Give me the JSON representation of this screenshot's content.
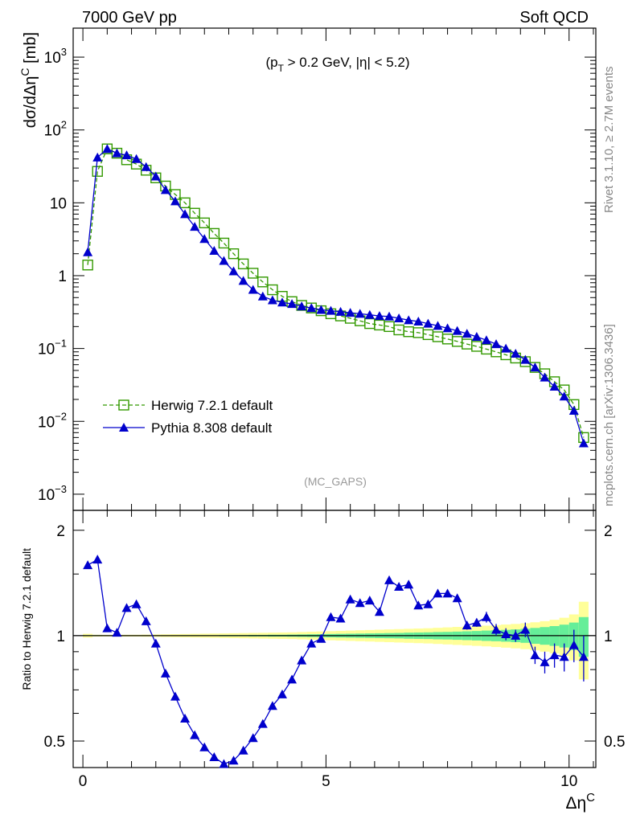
{
  "header": {
    "left": "7000 GeV pp",
    "right": "Soft QCD"
  },
  "side_labels": {
    "rivet": "Rivet 3.1.10, ≥ 2.7M events",
    "mcplots": "mcplots.cern.ch [arXiv:1306.3436]"
  },
  "analysis_tag": "(MC_GAPS)",
  "chart_data": [
    {
      "type": "line",
      "panel": "main",
      "ylabel": "dσ/dΔη^C [mb]",
      "annotation": "(p_T > 0.2 GeV, |η| < 5.2)",
      "xlim": [
        -0.2,
        10.55
      ],
      "ylim": [
        0.0006,
        2500
      ],
      "yscale": "log",
      "y_ticks": [
        "10^-3",
        "10^-2",
        "10^-1",
        "1",
        "10",
        "10^2",
        "10^3"
      ],
      "legend_position": "lower-left",
      "series": [
        {
          "name": "Herwig 7.2.1 default",
          "color": "#339900",
          "marker": "open-square",
          "linestyle": "dashed",
          "x": [
            0.1,
            0.3,
            0.5,
            0.7,
            0.9,
            1.1,
            1.3,
            1.5,
            1.7,
            1.9,
            2.1,
            2.3,
            2.5,
            2.7,
            2.9,
            3.1,
            3.3,
            3.5,
            3.7,
            3.9,
            4.1,
            4.3,
            4.5,
            4.7,
            4.9,
            5.1,
            5.3,
            5.5,
            5.7,
            5.9,
            6.1,
            6.3,
            6.5,
            6.7,
            6.9,
            7.1,
            7.3,
            7.5,
            7.7,
            7.9,
            8.1,
            8.3,
            8.5,
            8.7,
            8.9,
            9.1,
            9.3,
            9.5,
            9.7,
            9.9,
            10.1,
            10.3
          ],
          "values": [
            1.4,
            27,
            55,
            48,
            39,
            34,
            28,
            22,
            17,
            13,
            10,
            7.2,
            5.3,
            3.8,
            2.8,
            2.0,
            1.45,
            1.08,
            0.82,
            0.64,
            0.52,
            0.44,
            0.39,
            0.36,
            0.33,
            0.3,
            0.28,
            0.26,
            0.24,
            0.22,
            0.21,
            0.2,
            0.18,
            0.17,
            0.165,
            0.155,
            0.145,
            0.135,
            0.125,
            0.115,
            0.107,
            0.098,
            0.09,
            0.082,
            0.074,
            0.066,
            0.055,
            0.045,
            0.035,
            0.027,
            0.017,
            0.006
          ]
        },
        {
          "name": "Pythia 8.308 default",
          "color": "#0000cc",
          "marker": "filled-triangle",
          "linestyle": "solid",
          "x": [
            0.1,
            0.3,
            0.5,
            0.7,
            0.9,
            1.1,
            1.3,
            1.5,
            1.7,
            1.9,
            2.1,
            2.3,
            2.5,
            2.7,
            2.9,
            3.1,
            3.3,
            3.5,
            3.7,
            3.9,
            4.1,
            4.3,
            4.5,
            4.7,
            4.9,
            5.1,
            5.3,
            5.5,
            5.7,
            5.9,
            6.1,
            6.3,
            6.5,
            6.7,
            6.9,
            7.1,
            7.3,
            7.5,
            7.7,
            7.9,
            8.1,
            8.3,
            8.5,
            8.7,
            8.9,
            9.1,
            9.3,
            9.5,
            9.7,
            9.9,
            10.1,
            10.3
          ],
          "values": [
            2.1,
            42,
            55,
            48,
            45,
            40,
            31,
            23,
            15,
            10.5,
            7,
            4.7,
            3.2,
            2.2,
            1.6,
            1.15,
            0.85,
            0.64,
            0.52,
            0.46,
            0.43,
            0.41,
            0.38,
            0.36,
            0.34,
            0.33,
            0.32,
            0.31,
            0.3,
            0.29,
            0.28,
            0.275,
            0.26,
            0.245,
            0.235,
            0.22,
            0.205,
            0.19,
            0.175,
            0.16,
            0.145,
            0.13,
            0.115,
            0.1,
            0.085,
            0.07,
            0.055,
            0.04,
            0.03,
            0.022,
            0.014,
            0.005
          ]
        }
      ]
    },
    {
      "type": "line",
      "panel": "ratio",
      "xlabel": "Δη^C",
      "ylabel": "Ratio to Herwig 7.2.1 default",
      "xlim": [
        -0.2,
        10.55
      ],
      "ylim": [
        0.42,
        2.28
      ],
      "yscale": "log",
      "x_ticks": [
        0,
        5,
        10
      ],
      "y_ticks": [
        0.5,
        1,
        2
      ],
      "bands": {
        "x": [
          0.1,
          0.3,
          0.5,
          0.7,
          0.9,
          1.1,
          1.3,
          1.5,
          1.7,
          1.9,
          2.1,
          2.3,
          2.5,
          2.7,
          2.9,
          3.1,
          3.3,
          3.5,
          3.7,
          3.9,
          4.1,
          4.3,
          4.5,
          4.7,
          4.9,
          5.1,
          5.3,
          5.5,
          5.7,
          5.9,
          6.1,
          6.3,
          6.5,
          6.7,
          6.9,
          7.1,
          7.3,
          7.5,
          7.7,
          7.9,
          8.1,
          8.3,
          8.5,
          8.7,
          8.9,
          9.1,
          9.3,
          9.5,
          9.7,
          9.9,
          10.1,
          10.3
        ],
        "stat_rel": [
          0.003,
          0.003,
          0.002,
          0.002,
          0.002,
          0.002,
          0.002,
          0.002,
          0.002,
          0.002,
          0.003,
          0.003,
          0.003,
          0.003,
          0.004,
          0.004,
          0.004,
          0.005,
          0.005,
          0.006,
          0.006,
          0.007,
          0.008,
          0.009,
          0.01,
          0.011,
          0.012,
          0.013,
          0.014,
          0.015,
          0.016,
          0.017,
          0.018,
          0.02,
          0.021,
          0.022,
          0.024,
          0.025,
          0.027,
          0.029,
          0.031,
          0.034,
          0.036,
          0.039,
          0.042,
          0.046,
          0.052,
          0.058,
          0.065,
          0.075,
          0.09,
          0.13
        ],
        "total_rel": [
          0.012,
          0.006,
          0.005,
          0.005,
          0.006,
          0.006,
          0.007,
          0.008,
          0.009,
          0.01,
          0.011,
          0.012,
          0.013,
          0.014,
          0.015,
          0.016,
          0.017,
          0.018,
          0.019,
          0.02,
          0.021,
          0.022,
          0.024,
          0.026,
          0.028,
          0.03,
          0.032,
          0.034,
          0.036,
          0.038,
          0.04,
          0.042,
          0.044,
          0.046,
          0.048,
          0.05,
          0.053,
          0.056,
          0.059,
          0.062,
          0.065,
          0.068,
          0.072,
          0.076,
          0.08,
          0.085,
          0.092,
          0.1,
          0.11,
          0.125,
          0.15,
          0.25
        ],
        "stat_color": "#66ee99",
        "total_color": "#ffff99"
      },
      "series": [
        {
          "name": "Pythia 8.308 default",
          "color": "#0000cc",
          "marker": "filled-triangle",
          "x": [
            0.1,
            0.3,
            0.5,
            0.7,
            0.9,
            1.1,
            1.3,
            1.5,
            1.7,
            1.9,
            2.1,
            2.3,
            2.5,
            2.7,
            2.9,
            3.1,
            3.3,
            3.5,
            3.7,
            3.9,
            4.1,
            4.3,
            4.5,
            4.7,
            4.9,
            5.1,
            5.3,
            5.5,
            5.7,
            5.9,
            6.1,
            6.3,
            6.5,
            6.7,
            6.9,
            7.1,
            7.3,
            7.5,
            7.7,
            7.9,
            8.1,
            8.3,
            8.5,
            8.7,
            8.9,
            9.1,
            9.3,
            9.5,
            9.7,
            9.9,
            10.1,
            10.3
          ],
          "values": [
            1.59,
            1.65,
            1.05,
            1.02,
            1.2,
            1.23,
            1.1,
            0.95,
            0.78,
            0.67,
            0.58,
            0.52,
            0.48,
            0.45,
            0.43,
            0.44,
            0.47,
            0.51,
            0.56,
            0.63,
            0.68,
            0.75,
            0.85,
            0.95,
            0.98,
            1.13,
            1.12,
            1.27,
            1.24,
            1.26,
            1.17,
            1.44,
            1.38,
            1.4,
            1.22,
            1.23,
            1.32,
            1.32,
            1.28,
            1.07,
            1.09,
            1.13,
            1.04,
            1.01,
            1,
            1.04,
            0.88,
            0.84,
            0.88,
            0.87,
            0.94,
            0.87
          ],
          "err": [
            0,
            0,
            0,
            0,
            0,
            0,
            0,
            0,
            0,
            0,
            0,
            0,
            0,
            0,
            0,
            0,
            0,
            0,
            0,
            0,
            0,
            0,
            0,
            0,
            0,
            0,
            0,
            0,
            0,
            0,
            0,
            0,
            0,
            0,
            0,
            0.02,
            0.03,
            0.03,
            0.03,
            0.03,
            0.03,
            0.04,
            0.04,
            0.04,
            0.04,
            0.05,
            0.05,
            0.06,
            0.07,
            0.08,
            0.1,
            0.13
          ]
        }
      ],
      "reference_line": 1
    }
  ]
}
